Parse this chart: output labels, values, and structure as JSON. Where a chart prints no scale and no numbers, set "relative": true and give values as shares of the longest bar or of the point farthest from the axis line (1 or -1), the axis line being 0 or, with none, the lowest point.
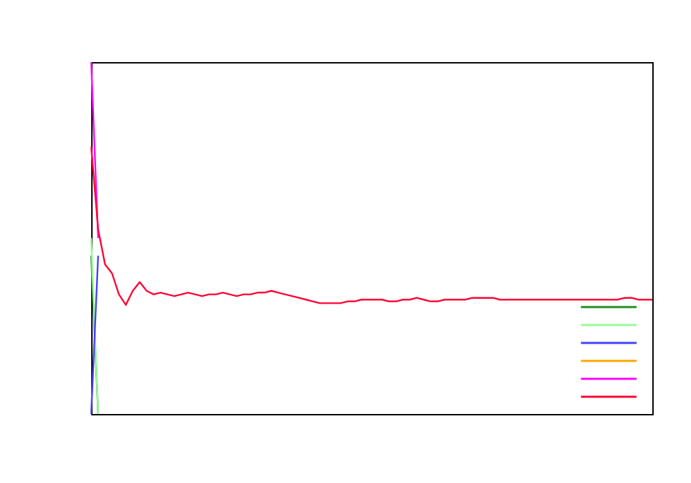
{
  "chart_data": {
    "type": "line",
    "relative": true,
    "line_style": "solid",
    "categories": [
      null,
      null,
      null,
      null,
      null,
      null,
      null,
      null,
      null,
      null,
      null,
      null,
      null,
      null,
      null,
      null,
      null,
      null,
      null,
      null,
      null,
      null,
      null,
      null,
      null,
      null,
      null,
      null,
      null,
      null,
      null,
      null,
      null,
      null,
      null,
      null,
      null,
      null,
      null,
      null,
      null,
      null,
      null,
      null,
      null,
      null,
      null,
      null,
      null,
      null,
      null,
      null,
      null,
      null,
      null,
      null,
      null,
      null,
      null,
      null,
      null,
      null,
      null,
      null,
      null,
      null,
      null,
      null,
      null,
      null,
      null,
      null,
      null,
      null,
      null,
      null,
      null,
      null,
      null,
      null,
      null,
      null
    ],
    "series": [
      {
        "color": "#228b22",
        "values": [
          0.45,
          0,
          null,
          null,
          null,
          null,
          null,
          null,
          null,
          null,
          null,
          null,
          null,
          null,
          null,
          null,
          null,
          null,
          null,
          null,
          null,
          null,
          null,
          null,
          null,
          null,
          null,
          null,
          null,
          null,
          null,
          null,
          null,
          null,
          null,
          null,
          null,
          null,
          null,
          null,
          null,
          null,
          null,
          null,
          null,
          null,
          null,
          null,
          null,
          null,
          null,
          null,
          null,
          null,
          null,
          null,
          null,
          null,
          null,
          null,
          null,
          null,
          null,
          null,
          null,
          null,
          null,
          null,
          null,
          null,
          null,
          null,
          null,
          null,
          null,
          null,
          null,
          null,
          null,
          null,
          null,
          null
        ]
      },
      {
        "color": "#98fb98",
        "values": [
          0.5,
          0,
          null,
          null,
          null,
          null,
          null,
          null,
          null,
          null,
          null,
          null,
          null,
          null,
          null,
          null,
          null,
          null,
          null,
          null,
          null,
          null,
          null,
          null,
          null,
          null,
          null,
          null,
          null,
          null,
          null,
          null,
          null,
          null,
          null,
          null,
          null,
          null,
          null,
          null,
          null,
          null,
          null,
          null,
          null,
          null,
          null,
          null,
          null,
          null,
          null,
          null,
          null,
          null,
          null,
          null,
          null,
          null,
          null,
          null,
          null,
          null,
          null,
          null,
          null,
          null,
          null,
          null,
          null,
          null,
          null,
          null,
          null,
          null,
          null,
          null,
          null,
          null,
          null,
          null,
          null,
          null
        ]
      },
      {
        "color": "#4040ff",
        "values": [
          0,
          0.45,
          null,
          null,
          null,
          null,
          null,
          null,
          null,
          null,
          null,
          null,
          null,
          null,
          null,
          null,
          null,
          null,
          null,
          null,
          null,
          null,
          null,
          null,
          null,
          null,
          null,
          null,
          null,
          null,
          null,
          null,
          null,
          null,
          null,
          null,
          null,
          null,
          null,
          null,
          null,
          null,
          null,
          null,
          null,
          null,
          null,
          null,
          null,
          null,
          null,
          null,
          null,
          null,
          null,
          null,
          null,
          null,
          null,
          null,
          null,
          null,
          null,
          null,
          null,
          null,
          null,
          null,
          null,
          null,
          null,
          null,
          null,
          null,
          null,
          null,
          null,
          null,
          null,
          null,
          null,
          null
        ]
      },
      {
        "color": "#ffa500",
        "values": [
          null,
          null,
          null,
          null,
          null,
          null,
          null,
          null,
          null,
          null,
          null,
          null,
          null,
          null,
          null,
          null,
          null,
          null,
          null,
          null,
          null,
          null,
          null,
          null,
          null,
          null,
          null,
          null,
          null,
          null,
          null,
          null,
          null,
          null,
          null,
          null,
          null,
          null,
          null,
          null,
          null,
          null,
          null,
          null,
          null,
          null,
          null,
          null,
          null,
          null,
          null,
          null,
          null,
          null,
          null,
          null,
          null,
          null,
          null,
          null,
          null,
          null,
          null,
          null,
          null,
          null,
          null,
          null,
          null,
          null,
          null,
          null,
          null,
          null,
          null,
          null,
          null,
          null,
          null,
          null,
          null,
          null
        ]
      },
      {
        "color": "#ff00ff",
        "values": [
          1,
          0.5,
          null,
          null,
          null,
          null,
          null,
          null,
          null,
          null,
          null,
          null,
          null,
          null,
          null,
          null,
          null,
          null,
          null,
          null,
          null,
          null,
          null,
          null,
          null,
          null,
          null,
          null,
          null,
          null,
          null,
          null,
          null,
          null,
          null,
          null,
          null,
          null,
          null,
          null,
          null,
          null,
          null,
          null,
          null,
          null,
          null,
          null,
          null,
          null,
          null,
          null,
          null,
          null,
          null,
          null,
          null,
          null,
          null,
          null,
          null,
          null,
          null,
          null,
          null,
          null,
          null,
          null,
          null,
          null,
          null,
          null,
          null,
          null,
          null,
          null,
          null,
          null,
          null,
          null,
          null,
          null
        ]
      },
      {
        "color": "#ff0033",
        "values": [
          0.76,
          0.525,
          0.425,
          0.4,
          0.34,
          0.31,
          0.35,
          0.375,
          0.35,
          0.34,
          0.345,
          0.34,
          0.335,
          0.34,
          0.345,
          0.34,
          0.335,
          0.34,
          0.34,
          0.345,
          0.34,
          0.335,
          0.34,
          0.34,
          0.345,
          0.345,
          0.35,
          0.345,
          0.34,
          0.335,
          0.33,
          0.325,
          0.32,
          0.315,
          0.315,
          0.315,
          0.315,
          0.32,
          0.32,
          0.325,
          0.325,
          0.325,
          0.325,
          0.32,
          0.32,
          0.325,
          0.325,
          0.33,
          0.325,
          0.32,
          0.32,
          0.325,
          0.325,
          0.325,
          0.325,
          0.33,
          0.33,
          0.33,
          0.33,
          0.325,
          0.325,
          0.325,
          0.325,
          0.325,
          0.325,
          0.325,
          0.325,
          0.325,
          0.325,
          0.325,
          0.325,
          0.325,
          0.325,
          0.325,
          0.325,
          0.325,
          0.325,
          0.33,
          0.33,
          0.325,
          0.325,
          0.325
        ]
      }
    ]
  }
}
